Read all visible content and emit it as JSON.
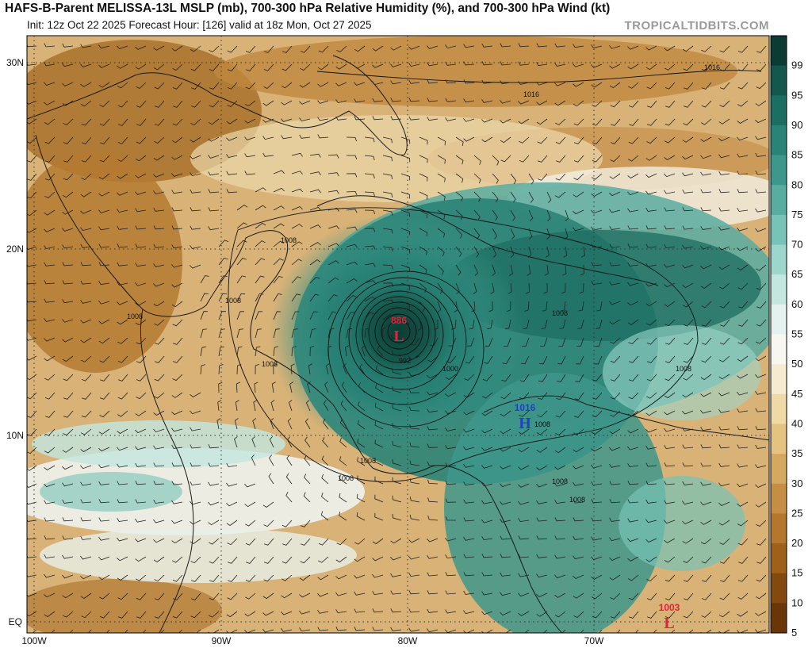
{
  "header": {
    "title": "HAFS-B-Parent MELISSA-13L MSLP (mb), 700-300 hPa Relative Humidity (%), and 700-300 hPa Wind (kt)",
    "subtitle": "Init: 12z Oct 22 2025   Forecast Hour: [126]   valid at 18z Mon, Oct 27 2025",
    "watermark": "TROPICALTIDBITS.COM"
  },
  "map": {
    "lon_range": [
      -100,
      -60
    ],
    "lat_range": [
      -0.5,
      32
    ],
    "lon_labels": [
      "100W",
      "90W",
      "80W",
      "70W"
    ],
    "lat_labels": [
      "30N",
      "20N",
      "10N",
      "EQ"
    ]
  },
  "colorbar": {
    "labels": [
      "99",
      "95",
      "90",
      "85",
      "80",
      "75",
      "70",
      "65",
      "60",
      "55",
      "50",
      "45",
      "40",
      "35",
      "30",
      "25",
      "20",
      "15",
      "10",
      "5"
    ],
    "colors": [
      "#0b3b32",
      "#14574c",
      "#1c6e62",
      "#2a8377",
      "#3e978b",
      "#58aca0",
      "#78c3b7",
      "#9dd6cc",
      "#c3e6df",
      "#e4f1ee",
      "#f7f6f1",
      "#f6ebcf",
      "#efd9a6",
      "#e3c282",
      "#d5a862",
      "#c58e44",
      "#b5772d",
      "#9f601b",
      "#84490e",
      "#6a3507"
    ]
  },
  "pressure_centers": [
    {
      "type": "L",
      "value": "886",
      "color": "#e0223a"
    },
    {
      "type": "H",
      "value": "1016",
      "color": "#2040c8"
    },
    {
      "type": "L",
      "value": "1003",
      "color": "#e0223a"
    }
  ],
  "isobar_labels": [
    "1016",
    "1016",
    "1008",
    "1008",
    "1008",
    "1008",
    "1008",
    "1008",
    "1008",
    "1008",
    "1008",
    "1008",
    "1008",
    "1000",
    "992"
  ]
}
